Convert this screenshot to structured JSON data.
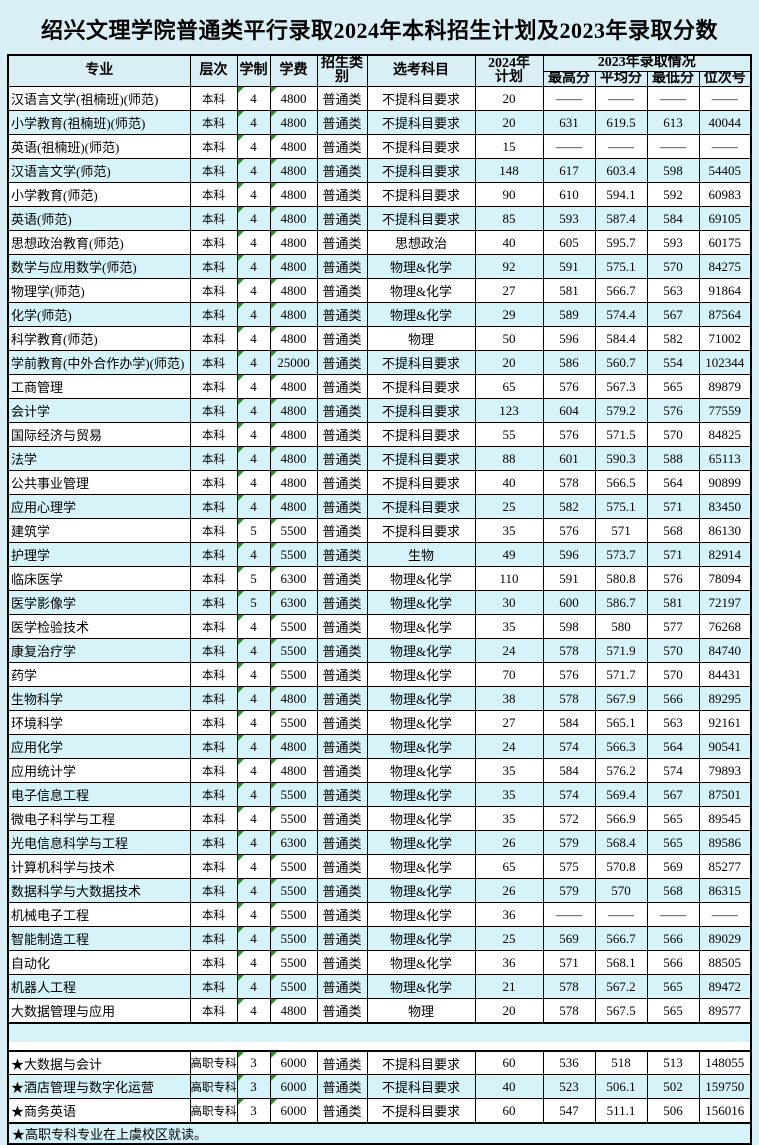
{
  "page": {
    "title": "绍兴文理学院普通类平行录取2024年本科招生计划及2023年录取分数"
  },
  "colors": {
    "page_background": "#d9eef5",
    "alt_row_background": "#d6f3f9",
    "row_background": "#ffffff",
    "border": "#000000",
    "flag_triangle_green": "#2e8b2e",
    "text": "#000000"
  },
  "table": {
    "headers": {
      "major": "专业",
      "level": "层次",
      "duration": "学制",
      "tuition": "学费",
      "category": "招生类别",
      "subjects": "选考科目",
      "plan2024": "2024年\n计划",
      "group2023": "2023年录取情况",
      "max2023": "最高分",
      "avg2023": "平均分",
      "min2023": "最低分",
      "rank2023": "位次号"
    },
    "column_keys": [
      "major",
      "level",
      "duration",
      "tuition",
      "category",
      "subjects",
      "plan2024",
      "max2023",
      "avg2023",
      "min2023",
      "rank2023"
    ],
    "main_rows": [
      [
        "汉语言文学(祖楠班)(师范)",
        "本科",
        "4",
        "4800",
        "普通类",
        "不提科目要求",
        "20",
        "——",
        "——",
        "——",
        "——"
      ],
      [
        "小学教育(祖楠班)(师范)",
        "本科",
        "4",
        "4800",
        "普通类",
        "不提科目要求",
        "20",
        "631",
        "619.5",
        "613",
        "40044"
      ],
      [
        "英语(祖楠班)(师范)",
        "本科",
        "4",
        "4800",
        "普通类",
        "不提科目要求",
        "15",
        "——",
        "——",
        "——",
        "——"
      ],
      [
        "汉语言文学(师范)",
        "本科",
        "4",
        "4800",
        "普通类",
        "不提科目要求",
        "148",
        "617",
        "603.4",
        "598",
        "54405"
      ],
      [
        "小学教育(师范)",
        "本科",
        "4",
        "4800",
        "普通类",
        "不提科目要求",
        "90",
        "610",
        "594.1",
        "592",
        "60983"
      ],
      [
        "英语(师范)",
        "本科",
        "4",
        "4800",
        "普通类",
        "不提科目要求",
        "85",
        "593",
        "587.4",
        "584",
        "69105"
      ],
      [
        "思想政治教育(师范)",
        "本科",
        "4",
        "4800",
        "普通类",
        "思想政治",
        "40",
        "605",
        "595.7",
        "593",
        "60175"
      ],
      [
        "数学与应用数学(师范)",
        "本科",
        "4",
        "4800",
        "普通类",
        "物理&化学",
        "92",
        "591",
        "575.1",
        "570",
        "84275"
      ],
      [
        "物理学(师范)",
        "本科",
        "4",
        "4800",
        "普通类",
        "物理&化学",
        "27",
        "581",
        "566.7",
        "563",
        "91864"
      ],
      [
        "化学(师范)",
        "本科",
        "4",
        "4800",
        "普通类",
        "物理&化学",
        "29",
        "589",
        "574.4",
        "567",
        "87564"
      ],
      [
        "科学教育(师范)",
        "本科",
        "4",
        "4800",
        "普通类",
        "物理",
        "50",
        "596",
        "584.4",
        "582",
        "71002"
      ],
      [
        "学前教育(中外合作办学)(师范)",
        "本科",
        "4",
        "25000",
        "普通类",
        "不提科目要求",
        "20",
        "586",
        "560.7",
        "554",
        "102344"
      ],
      [
        "工商管理",
        "本科",
        "4",
        "4800",
        "普通类",
        "不提科目要求",
        "65",
        "576",
        "567.3",
        "565",
        "89879"
      ],
      [
        "会计学",
        "本科",
        "4",
        "4800",
        "普通类",
        "不提科目要求",
        "123",
        "604",
        "579.2",
        "576",
        "77559"
      ],
      [
        "国际经济与贸易",
        "本科",
        "4",
        "4800",
        "普通类",
        "不提科目要求",
        "55",
        "576",
        "571.5",
        "570",
        "84825"
      ],
      [
        "法学",
        "本科",
        "4",
        "4800",
        "普通类",
        "不提科目要求",
        "88",
        "601",
        "590.3",
        "588",
        "65113"
      ],
      [
        "公共事业管理",
        "本科",
        "4",
        "4800",
        "普通类",
        "不提科目要求",
        "40",
        "578",
        "566.5",
        "564",
        "90899"
      ],
      [
        "应用心理学",
        "本科",
        "4",
        "4800",
        "普通类",
        "不提科目要求",
        "25",
        "582",
        "575.1",
        "571",
        "83450"
      ],
      [
        "建筑学",
        "本科",
        "5",
        "5500",
        "普通类",
        "不提科目要求",
        "35",
        "576",
        "571",
        "568",
        "86130"
      ],
      [
        "护理学",
        "本科",
        "4",
        "5500",
        "普通类",
        "生物",
        "49",
        "596",
        "573.7",
        "571",
        "82914"
      ],
      [
        "临床医学",
        "本科",
        "5",
        "6300",
        "普通类",
        "物理&化学",
        "110",
        "591",
        "580.8",
        "576",
        "78094"
      ],
      [
        "医学影像学",
        "本科",
        "5",
        "6300",
        "普通类",
        "物理&化学",
        "30",
        "600",
        "586.7",
        "581",
        "72197"
      ],
      [
        "医学检验技术",
        "本科",
        "4",
        "5500",
        "普通类",
        "物理&化学",
        "35",
        "598",
        "580",
        "577",
        "76268"
      ],
      [
        "康复治疗学",
        "本科",
        "4",
        "5500",
        "普通类",
        "物理&化学",
        "24",
        "578",
        "571.9",
        "570",
        "84740"
      ],
      [
        "药学",
        "本科",
        "4",
        "5500",
        "普通类",
        "物理&化学",
        "70",
        "576",
        "571.7",
        "570",
        "84431"
      ],
      [
        "生物科学",
        "本科",
        "4",
        "4800",
        "普通类",
        "物理&化学",
        "38",
        "578",
        "567.9",
        "566",
        "89295"
      ],
      [
        "环境科学",
        "本科",
        "4",
        "5500",
        "普通类",
        "物理&化学",
        "27",
        "584",
        "565.1",
        "563",
        "92161"
      ],
      [
        "应用化学",
        "本科",
        "4",
        "4800",
        "普通类",
        "物理&化学",
        "24",
        "574",
        "566.3",
        "564",
        "90541"
      ],
      [
        "应用统计学",
        "本科",
        "4",
        "4800",
        "普通类",
        "物理&化学",
        "35",
        "584",
        "576.2",
        "574",
        "79893"
      ],
      [
        "电子信息工程",
        "本科",
        "4",
        "5500",
        "普通类",
        "物理&化学",
        "35",
        "574",
        "569.4",
        "567",
        "87501"
      ],
      [
        "微电子科学与工程",
        "本科",
        "4",
        "5500",
        "普通类",
        "物理&化学",
        "35",
        "572",
        "566.9",
        "565",
        "89545"
      ],
      [
        "光电信息科学与工程",
        "本科",
        "4",
        "6300",
        "普通类",
        "物理&化学",
        "26",
        "579",
        "568.4",
        "565",
        "89586"
      ],
      [
        "计算机科学与技术",
        "本科",
        "4",
        "5500",
        "普通类",
        "物理&化学",
        "65",
        "575",
        "570.8",
        "569",
        "85277"
      ],
      [
        "数据科学与大数据技术",
        "本科",
        "4",
        "5500",
        "普通类",
        "物理&化学",
        "26",
        "579",
        "570",
        "568",
        "86315"
      ],
      [
        "机械电子工程",
        "本科",
        "4",
        "5500",
        "普通类",
        "物理&化学",
        "36",
        "——",
        "——",
        "——",
        "——"
      ],
      [
        "智能制造工程",
        "本科",
        "4",
        "5500",
        "普通类",
        "物理&化学",
        "25",
        "569",
        "566.7",
        "566",
        "89029"
      ],
      [
        "自动化",
        "本科",
        "4",
        "5500",
        "普通类",
        "物理&化学",
        "36",
        "571",
        "568.1",
        "566",
        "88505"
      ],
      [
        "机器人工程",
        "本科",
        "4",
        "5500",
        "普通类",
        "物理&化学",
        "21",
        "578",
        "567.2",
        "565",
        "89472"
      ],
      [
        "大数据管理与应用",
        "本科",
        "4",
        "4800",
        "普通类",
        "物理",
        "20",
        "578",
        "567.5",
        "565",
        "89577"
      ]
    ],
    "vocational_rows": [
      [
        "★大数据与会计",
        "高职专科",
        "3",
        "6000",
        "普通类",
        "不提科目要求",
        "60",
        "536",
        "518",
        "513",
        "148055"
      ],
      [
        "★酒店管理与数字化运营",
        "高职专科",
        "3",
        "6000",
        "普通类",
        "不提科目要求",
        "40",
        "523",
        "506.1",
        "502",
        "159750"
      ],
      [
        "★商务英语",
        "高职专科",
        "3",
        "6000",
        "普通类",
        "不提科目要求",
        "60",
        "547",
        "511.1",
        "506",
        "156016"
      ]
    ],
    "footnote": "★高职专科专业在上虞校区就读。"
  }
}
